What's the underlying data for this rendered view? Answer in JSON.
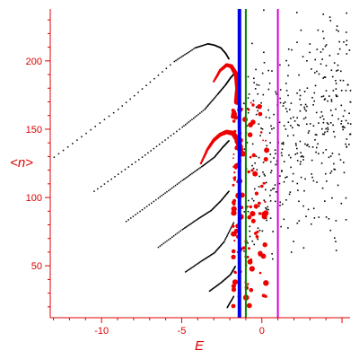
{
  "chart_data": {
    "type": "scatter",
    "xlabel": "E",
    "ylabel": "<n>",
    "xlim": [
      -13.2,
      5.5
    ],
    "ylim": [
      12,
      238
    ],
    "x_ticks": [
      -10,
      -5,
      0
    ],
    "y_ticks": [
      50,
      100,
      150,
      200
    ],
    "grid": false,
    "axis_color": "#e00000",
    "vertical_lines": [
      {
        "x": -1.4,
        "color": "#0000ee"
      },
      {
        "x": -1.0,
        "color": "#008800"
      },
      {
        "x": 1.0,
        "color": "#dd00dd"
      }
    ],
    "black_curves": [
      {
        "E": [
          -13.0,
          -9.0,
          -5.5,
          -4.2,
          -3.4,
          -3.0,
          -2.6,
          -2.3,
          -2.1
        ],
        "n": [
          130,
          165,
          200,
          210,
          213,
          212,
          210,
          206,
          202
        ]
      },
      {
        "E": [
          -10.5,
          -7.5,
          -5.0,
          -3.6,
          -2.8,
          -2.3,
          -2.0,
          -1.7
        ],
        "n": [
          105,
          130,
          152,
          165,
          176,
          183,
          188,
          192
        ]
      },
      {
        "E": [
          -8.5,
          -6.5,
          -5.0,
          -3.8,
          -3.0,
          -2.5,
          -2.1
        ],
        "n": [
          83,
          100,
          113,
          123,
          130,
          137,
          142
        ]
      },
      {
        "E": [
          -6.5,
          -5.0,
          -4.0,
          -3.2,
          -2.6,
          -2.1
        ],
        "n": [
          64,
          77,
          85,
          91,
          98,
          105
        ]
      },
      {
        "E": [
          -4.8,
          -3.8,
          -3.0,
          -2.4,
          -1.8
        ],
        "n": [
          46,
          54,
          60,
          68,
          82
        ]
      },
      {
        "E": [
          -3.3,
          -2.6,
          -2.0,
          -1.7
        ],
        "n": [
          32,
          38,
          44,
          50
        ]
      },
      {
        "E": [
          -2.2,
          -1.8
        ],
        "n": [
          20,
          28
        ]
      }
    ],
    "red_arcs": [
      {
        "E": [
          -3.0,
          -2.6,
          -2.2,
          -1.9,
          -1.6,
          -1.5,
          -1.55
        ],
        "n": [
          185,
          193,
          197,
          196,
          190,
          180,
          170
        ]
      },
      {
        "E": [
          -3.8,
          -3.4,
          -3.0,
          -2.6,
          -2.2,
          -1.8,
          -1.5,
          -1.35
        ],
        "n": [
          125,
          135,
          142,
          146,
          148,
          147,
          142,
          135
        ]
      }
    ],
    "black_scatter_region": {
      "E": [
        -1.2,
        5.5
      ],
      "n": [
        55,
        238
      ],
      "count": 420
    },
    "red_scatter_region": {
      "E": [
        -1.8,
        0.3
      ],
      "n": [
        20,
        170
      ],
      "count": 130
    }
  }
}
